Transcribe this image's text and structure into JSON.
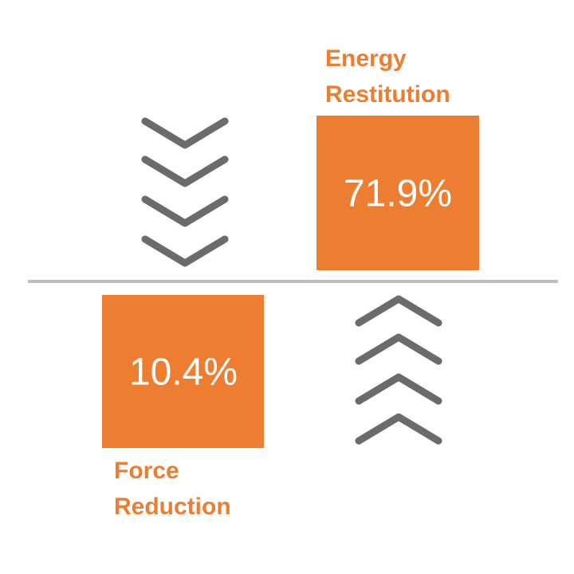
{
  "energy_restitution": {
    "label_lines": [
      "Energy",
      "Restitution"
    ],
    "value": "71.9%"
  },
  "force_reduction": {
    "label_lines": [
      "Force",
      "Reduction"
    ],
    "value": "10.4%"
  }
}
